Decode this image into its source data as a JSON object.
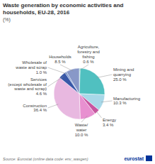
{
  "chart_data": {
    "type": "pie",
    "title": "Waste generation by economic activities and\nhouseholds, EU-28, 2016",
    "subtitle": "(%)",
    "annotations": [
      "Source: Eurostat (online data code: env_wasgen)",
      "eurostat"
    ],
    "categories": [
      "Agriculture,\nforestry and\nfishing\n0.6 %",
      "Mining and\nquarrying\n25.0 %",
      "Manufacturing\n10.3 %",
      "Energy\n3.4 %",
      "Waste/\nwater\n10.0 %",
      "Construction\n36.4 %",
      "Services\n(except wholesale of\nwaste and scrap)\n4.6 %",
      "Wholesale of\nwaste and scrap\n1.0 %",
      "Households\n8.5 %"
    ],
    "values": [
      0.6,
      25.0,
      10.3,
      3.4,
      10.0,
      36.4,
      4.6,
      1.0,
      8.5
    ],
    "colors": [
      "#88d4d4",
      "#50c0c0",
      "#a8d8e8",
      "#c855a0",
      "#e890d0",
      "#e8b8e0",
      "#3858a8",
      "#6888c8",
      "#8898c8"
    ]
  }
}
